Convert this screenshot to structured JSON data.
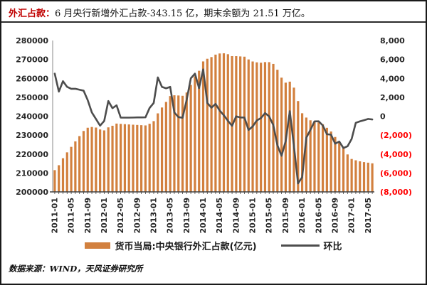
{
  "title": {
    "prefix": "外汇占款：",
    "text": "6 月央行新增外汇占款-343.15 亿，期末余额为 21.51 万亿。"
  },
  "footer": {
    "text": "数据来源：WIND，天风证券研究所"
  },
  "legend": {
    "bar_label": "货币当局:中央银行外汇占款(亿元)",
    "line_label": "环比"
  },
  "colors": {
    "bar": "#d2803e",
    "line": "#4d4d4d",
    "axis_text": "#262626",
    "negative_axis_text": "#ff0000",
    "axis_line": "#404040",
    "title_accent": "#c00000"
  },
  "chart_data": {
    "type": "bar+line combo",
    "title": "外汇占款：6 月央行新增外汇占款-343.15 亿，期末余额为 21.51 万亿。",
    "x": [
      "2011-01",
      "2011-02",
      "2011-03",
      "2011-04",
      "2011-05",
      "2011-06",
      "2011-07",
      "2011-08",
      "2011-09",
      "2011-10",
      "2011-11",
      "2011-12",
      "2012-01",
      "2012-02",
      "2012-03",
      "2012-04",
      "2012-05",
      "2012-06",
      "2012-07",
      "2012-08",
      "2012-09",
      "2012-10",
      "2012-11",
      "2012-12",
      "2013-01",
      "2013-02",
      "2013-03",
      "2013-04",
      "2013-05",
      "2013-06",
      "2013-07",
      "2013-08",
      "2013-09",
      "2013-10",
      "2013-11",
      "2013-12",
      "2014-01",
      "2014-02",
      "2014-03",
      "2014-04",
      "2014-05",
      "2014-06",
      "2014-07",
      "2014-08",
      "2014-09",
      "2014-10",
      "2014-11",
      "2014-12",
      "2015-01",
      "2015-02",
      "2015-03",
      "2015-04",
      "2015-05",
      "2015-06",
      "2015-07",
      "2015-08",
      "2015-09",
      "2015-10",
      "2015-11",
      "2015-12",
      "2016-01",
      "2016-02",
      "2016-03",
      "2016-04",
      "2016-05",
      "2016-06",
      "2016-07",
      "2016-08",
      "2016-09",
      "2016-10",
      "2016-11",
      "2016-12",
      "2017-01",
      "2017-02",
      "2017-03",
      "2017-04",
      "2017-05",
      "2017-06"
    ],
    "x_tick_every": 4,
    "x_tick_labels": [
      "2011-01",
      "2011-05",
      "2011-09",
      "2012-01",
      "2012-05",
      "2012-09",
      "2013-01",
      "2013-05",
      "2013-09",
      "2014-01",
      "2014-05",
      "2014-09",
      "2015-01",
      "2015-05",
      "2015-09",
      "2016-01",
      "2016-05",
      "2016-09",
      "2017-01",
      "2017-05"
    ],
    "series": [
      {
        "name": "货币当局:中央银行外汇占款(亿元)",
        "type": "bar",
        "axis": "left",
        "values": [
          211500,
          214100,
          217800,
          220900,
          223800,
          226700,
          229500,
          232200,
          233900,
          234300,
          234000,
          233000,
          232500,
          234100,
          234950,
          236100,
          235950,
          235800,
          235650,
          235510,
          235380,
          235250,
          235130,
          236000,
          237400,
          241500,
          244600,
          247550,
          250650,
          251050,
          250950,
          250790,
          252535,
          256535,
          261030,
          264000,
          268946,
          270346,
          271246,
          272546,
          273146,
          273246,
          272756,
          271741,
          271726,
          271591,
          271456,
          270000,
          268917,
          268467,
          268267,
          268591,
          268569,
          267632,
          264552,
          260368,
          257727,
          258260,
          255102,
          248000,
          241555,
          239276,
          237828,
          237284,
          236747,
          235770,
          233865,
          231919,
          229019,
          226340,
          222978,
          219800,
          217400,
          216700,
          216153,
          215733,
          215443,
          215100
        ]
      },
      {
        "name": "环比",
        "type": "line",
        "axis": "right",
        "values": [
          4500,
          2600,
          3700,
          3100,
          2900,
          2900,
          2800,
          2700,
          1700,
          400,
          -300,
          -1000,
          -500,
          1600,
          850,
          1150,
          -150,
          -150,
          -150,
          -140,
          -130,
          -130,
          -120,
          870,
          1400,
          4100,
          3100,
          2950,
          3100,
          400,
          -100,
          -160,
          1745,
          4000,
          4495,
          2970,
          4946,
          1400,
          900,
          1300,
          600,
          100,
          -490,
          -1015,
          -15,
          -135,
          -135,
          -1456,
          -1083,
          -450,
          -200,
          324,
          -22,
          -937,
          -3080,
          -4184,
          -2641,
          533,
          -3158,
          -7102,
          -6445,
          -2279,
          -1448,
          -544,
          -537,
          -977,
          -1905,
          -1946,
          -2900,
          -2679,
          -3362,
          -3178,
          -2400,
          -700,
          -547,
          -420,
          -290,
          -343
        ]
      }
    ],
    "left_axis": {
      "min": 200000,
      "max": 280000,
      "step": 10000,
      "tick_labels": [
        "280000",
        "270000",
        "260000",
        "250000",
        "240000",
        "230000",
        "220000",
        "210000",
        "200000"
      ]
    },
    "right_axis": {
      "min": -8000,
      "max": 8000,
      "step": 2000,
      "tick_labels": [
        "8,000",
        "6,000",
        "4,000",
        "2,000",
        "0",
        "(2,000)",
        "(4,000)",
        "(6,000)",
        "(8,000)"
      ],
      "negative_format": "parentheses, red"
    },
    "grid": false,
    "legend_position": "bottom"
  }
}
